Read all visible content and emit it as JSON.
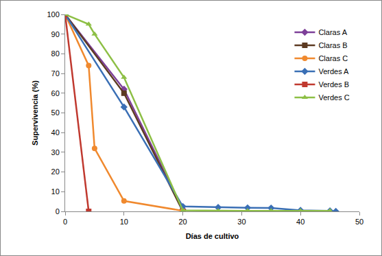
{
  "chart_data": {
    "type": "line",
    "x_label": "Días de cultivo",
    "y_label": "Supervivencia (%)",
    "xlim": [
      0,
      50
    ],
    "xticks": [
      0,
      10,
      20,
      30,
      40,
      50
    ],
    "ylim": [
      0,
      100
    ],
    "yticks": [
      0,
      10,
      20,
      30,
      40,
      50,
      60,
      70,
      80,
      90,
      100
    ],
    "grid": false,
    "legend": "top-right",
    "series": [
      {
        "name": "Claras A",
        "color": "#7d3f98",
        "marker": "diamond",
        "x": [
          0,
          10,
          20
        ],
        "values": [
          100,
          62,
          1
        ]
      },
      {
        "name": "Claras B",
        "color": "#5c3a21",
        "marker": "square",
        "x": [
          0,
          10,
          20
        ],
        "values": [
          100,
          60,
          0
        ]
      },
      {
        "name": "Claras C",
        "color": "#f0892e",
        "marker": "circle",
        "x": [
          0,
          4,
          5,
          10,
          20
        ],
        "values": [
          100,
          74,
          32,
          5.3,
          0.3
        ]
      },
      {
        "name": "Verdes A",
        "color": "#3a6fb5",
        "marker": "diamond",
        "x": [
          0,
          10,
          20,
          26,
          31,
          35,
          40,
          45,
          46
        ],
        "values": [
          100,
          53,
          2.5,
          2,
          1.8,
          1.7,
          0.5,
          0.3,
          0
        ]
      },
      {
        "name": "Verdes B",
        "color": "#c0392f",
        "marker": "square",
        "x": [
          0,
          4
        ],
        "values": [
          100,
          0
        ]
      },
      {
        "name": "Verdes C",
        "color": "#8dbf45",
        "marker": "triangle-up",
        "x": [
          0,
          4,
          5,
          10,
          20,
          26,
          31,
          35,
          40,
          45
        ],
        "values": [
          100,
          95,
          90,
          68,
          0.5,
          0.3,
          0.3,
          0.3,
          0.3,
          0.3
        ]
      }
    ]
  }
}
